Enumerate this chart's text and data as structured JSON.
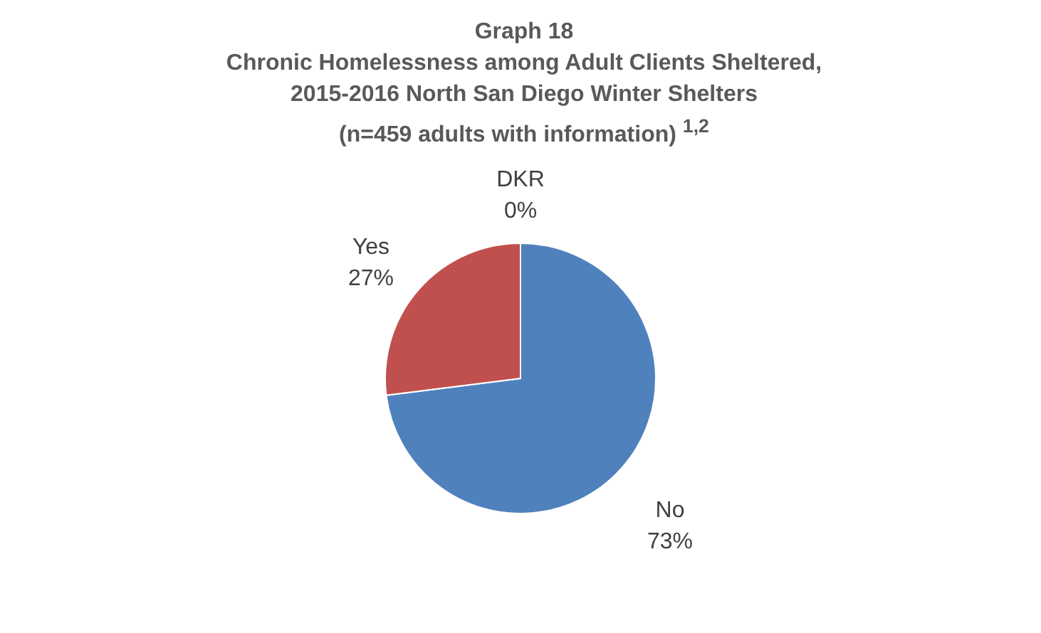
{
  "chart_data": {
    "type": "pie",
    "title": "Graph 18\nChronic Homelessness among Adult Clients Sheltered,\n2015-2016 North San Diego Winter Shelters\n(n=459 adults with information) $^{1,2}$",
    "categories": [
      "No",
      "Yes",
      "DKR"
    ],
    "values": [
      73,
      27,
      0
    ],
    "value_labels": [
      "73%",
      "27%",
      "0%"
    ],
    "colors": [
      "#4f81bd",
      "#c0504d",
      "#9bbb59"
    ]
  }
}
